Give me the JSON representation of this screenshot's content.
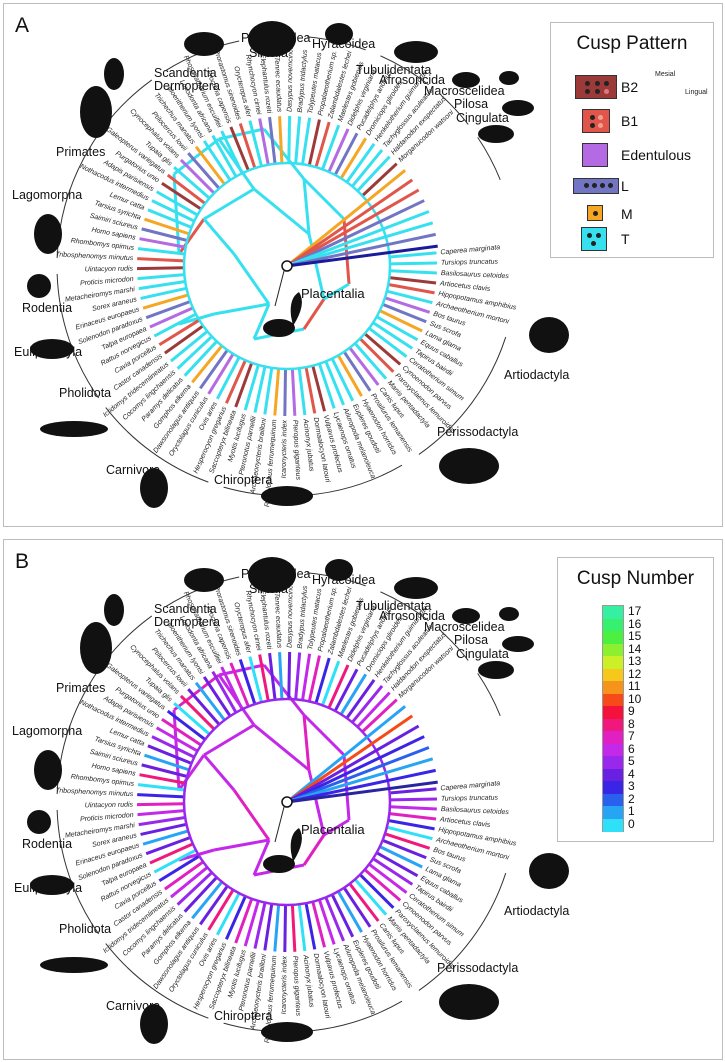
{
  "panels": {
    "a": {
      "label": "A"
    },
    "b": {
      "label": "B"
    }
  },
  "center_label": "Placentalia",
  "clades": {
    "primates": "Primates",
    "scandentia": "Scandentia",
    "dermoptera": "Dermoptera",
    "sirenia": "Sirenia",
    "proboscidea": "Proboscidea",
    "hyracoidea": "Hyracoidea",
    "tubulidentata": "Tubulidentata",
    "afrosoricida": "Afrosoricida",
    "macroscelidea": "Macroscelidea",
    "pilosa": "Pilosa",
    "cingulata": "Cingulata",
    "lagomorpha": "Lagomorpha",
    "rodentia": "Rodentia",
    "euliptophyla": "Euliptophyla",
    "pholidota": "Pholidota",
    "carnivora": "Carnivora",
    "chiroptera": "Chiroptera",
    "artiodactyla": "Artiodactyla",
    "perissodactyla": "Perissodactyla"
  },
  "legend_a": {
    "title": "Cusp Pattern",
    "items": [
      {
        "label": "B2",
        "color": "#9c3a3a"
      },
      {
        "label": "B1",
        "color": "#e0564a"
      },
      {
        "label": "Edentulous",
        "color": "#b36ae2"
      },
      {
        "label": "L",
        "color": "#7175c4"
      },
      {
        "label": "M",
        "color": "#f5a623"
      },
      {
        "label": "T",
        "color": "#37e0ef"
      }
    ],
    "orientation": {
      "mesial": "Mesial",
      "lingual": "Lingual"
    }
  },
  "legend_b": {
    "title": "Cusp Number",
    "ticks": [
      "17",
      "16",
      "15",
      "14",
      "13",
      "12",
      "11",
      "10",
      "9",
      "8",
      "7",
      "6",
      "5",
      "4",
      "3",
      "2",
      "1",
      "0"
    ],
    "colors": [
      "#35f0a0",
      "#38f070",
      "#4cf040",
      "#8cf030",
      "#ccf028",
      "#f6c81c",
      "#f6931a",
      "#f64a18",
      "#f4123c",
      "#f0187c",
      "#e020c0",
      "#c428e8",
      "#9a28ec",
      "#6a20e0",
      "#3a24e6",
      "#2a60ee",
      "#28a4f4",
      "#2ee0f8"
    ]
  },
  "taxa": [
    "Caperea marginata",
    "Tursiops truncatus",
    "Basilosaurus cetoides",
    "Artiocetus clavis",
    "Hippopotamus amphibius",
    "Archaeotherium mortoni",
    "Bos taurus",
    "Sus scrofa",
    "Lama glama",
    "Equus caballus",
    "Tapirus bairdii",
    "Ceratotherium simum",
    "Cynoenodon parvus",
    "Paroxyclaenus lemuroides",
    "Manis pentadactyla",
    "Canis lupus",
    "Proailurus lemanensis",
    "Hyaenodon horridus",
    "Eupleres goudotii",
    "Ailuropoda melanoleuca",
    "Lycaenops ornatus",
    "Vulpavus profectus",
    "Dormaalocyon latouri",
    "Acinonyx jubatus",
    "Pteropus giganteus",
    "Icaronycteris index",
    "Rhinolophus ferrumequinum",
    "Archaeonycteris brailloni",
    "Pteronotus parnellii",
    "Myotis lucifugus",
    "Saccopteryx bilineata",
    "Hesperocyon gregarius",
    "Ovis aries",
    "Oryctolagus cuniculus",
    "Dawsonolagus antiquus",
    "Gomphos elkema",
    "Paramys delicatus",
    "Cocomys lingchaensis",
    "Ictidomys tridecemlineatus",
    "Castor canadensis",
    "Cavia porcellus",
    "Rattus norvegicus",
    "Talpa europaea",
    "Solenodon paradoxus",
    "Erinaceus europaeus",
    "Sorex araneus",
    "Metacheiromys marshi",
    "Proticis microdon",
    "Uintacyon rudis",
    "Tribosphenomys minutus",
    "Rhombomys opimus",
    "Homo sapiens",
    "Saimiri sciureus",
    "Tarsius syrichta",
    "Lemur catta",
    "Nothacodus intermedius",
    "Adapis parisiensis",
    "Purgatorius unio",
    "Galeopterus variegatus",
    "Tupaia glis",
    "Cynocephalus volans",
    "Ptilocercus lowii",
    "Trichechus manatus",
    "Moeritherium lyonsi",
    "Loxodonta africana",
    "Phosphatherium escuilliei",
    "Procavia capensis",
    "Prorastomus sirenoides",
    "Orycteropus afer",
    "Rhynchocyon cirnei",
    "Elephantulus rozeti",
    "Tenrec ecaudatus",
    "Dasypus novemcinctus",
    "Bradypus tridactylus",
    "Tolypeutes matacus",
    "Propalaeotherium sp.",
    "Zalambdalestes lechei",
    "Maelestes gobiensis",
    "Didelphis virginiana",
    "Pucadelphys andinus",
    "Dromiciops gliroides",
    "Henkelotherium guimarotae",
    "Tachyglossus aculeatus",
    "Haldanodon exspectatus",
    "Morganucodon watsoni"
  ]
}
